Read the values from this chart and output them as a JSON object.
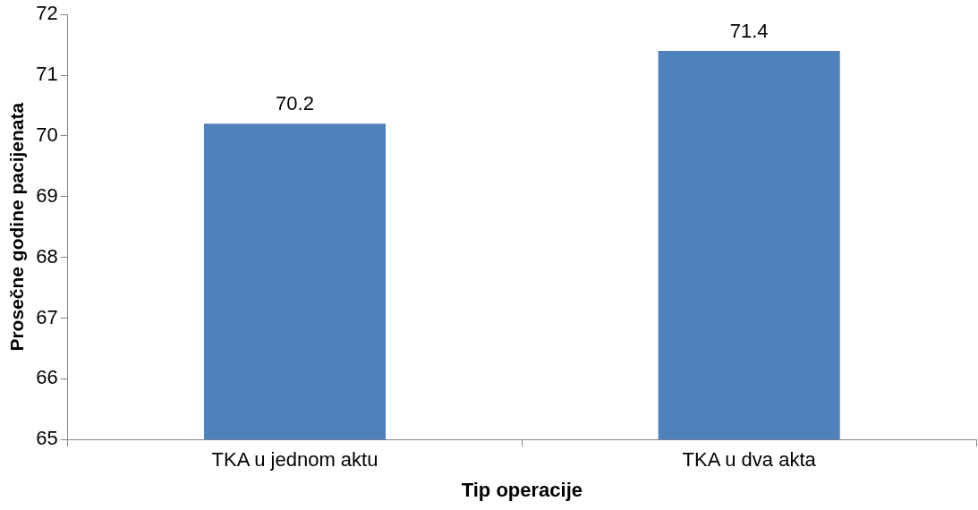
{
  "chart_data": {
    "type": "bar",
    "xlabel": "Tip operacije",
    "ylabel": "Prosečne godine pacijenata",
    "categories": [
      "TKA u jednom aktu",
      "TKA u dva akta"
    ],
    "values": [
      70.2,
      71.4
    ],
    "color": "#4f81bd",
    "ylim": [
      65,
      72
    ],
    "yticks": [
      65,
      66,
      67,
      68,
      69,
      70,
      71,
      72
    ],
    "data_labels": true,
    "grid": false,
    "legend": false
  }
}
